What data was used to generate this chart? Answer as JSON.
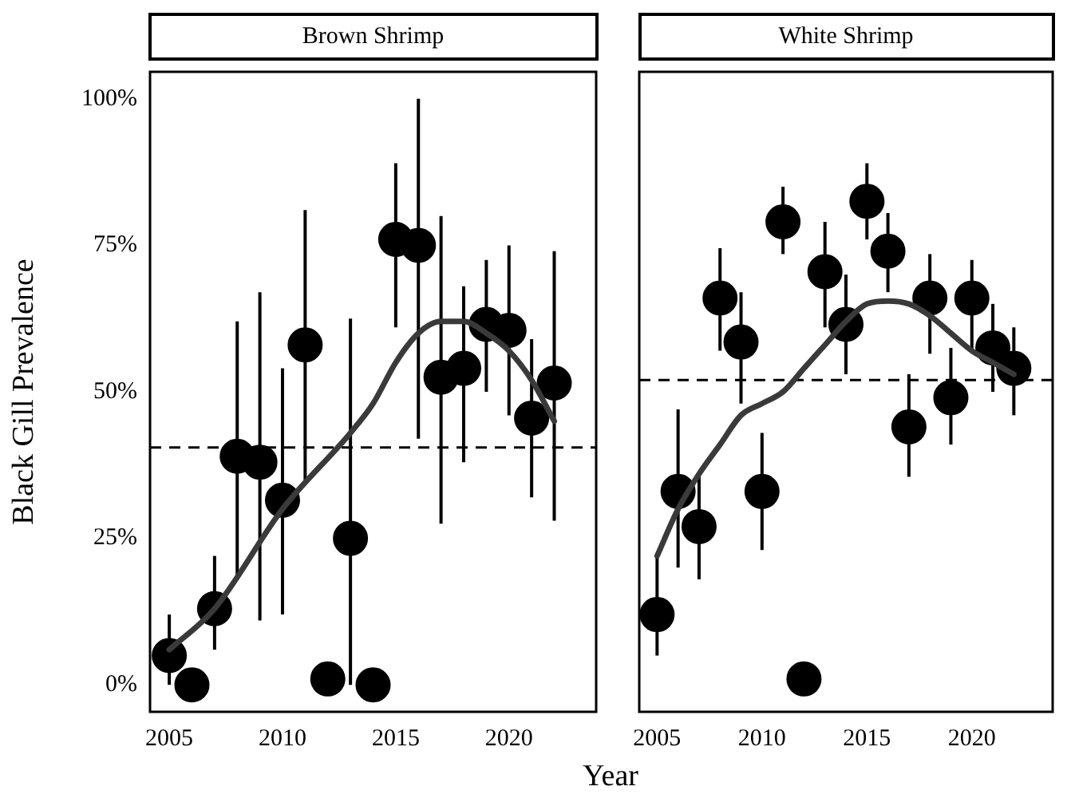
{
  "chart_data": [
    {
      "type": "scatter",
      "title": "Brown Shrimp",
      "xlabel": "Year",
      "ylabel": "Black Gill Prevalence",
      "xlim": [
        2004.15,
        2023.85
      ],
      "xticks": [
        2005,
        2010,
        2015,
        2020
      ],
      "ylim": [
        -4.6,
        104.6
      ],
      "yticks": [
        {
          "value": 0,
          "label": "0%"
        },
        {
          "value": 25,
          "label": "25%"
        },
        {
          "value": 50,
          "label": "50%"
        },
        {
          "value": 75,
          "label": "75%"
        },
        {
          "value": 100,
          "label": "100%"
        }
      ],
      "grid": false,
      "legend": false,
      "series": [
        {
          "marker": "circle",
          "color": "#000000",
          "x": [
            2005,
            2006,
            2007,
            2008,
            2009,
            2010,
            2011,
            2012,
            2013,
            2014,
            2015,
            2016,
            2017,
            2018,
            2019,
            2020,
            2021,
            2022
          ],
          "values": [
            5,
            0,
            13,
            39,
            38,
            31.5,
            58,
            1,
            25,
            0,
            76,
            75,
            52.5,
            54,
            61.5,
            60.5,
            45.5,
            51.5
          ],
          "errors": [
            [
              0,
              12
            ],
            null,
            [
              6,
              22
            ],
            [
              18,
              62
            ],
            [
              11,
              67
            ],
            [
              12,
              54
            ],
            [
              35,
              81
            ],
            null,
            [
              0,
              62.5
            ],
            null,
            [
              61,
              89
            ],
            [
              42,
              100
            ],
            [
              27.5,
              80
            ],
            [
              38,
              68
            ],
            [
              50,
              72.5
            ],
            [
              46,
              75
            ],
            [
              32,
              59
            ],
            [
              28,
              74
            ]
          ]
        },
        {
          "type": "line",
          "marker": "none",
          "color": "#3a3a3a",
          "x": [
            2005,
            2007,
            2010,
            2013,
            2014,
            2015,
            2016,
            2017,
            2018,
            2019,
            2020,
            2021,
            2022
          ],
          "values": [
            6,
            13,
            30,
            43,
            48,
            55,
            60,
            62,
            62,
            60,
            57,
            52,
            45
          ]
        }
      ],
      "ref_lines": [
        {
          "axis": "y",
          "value": 40.5,
          "color": "#000000",
          "line_style": "dashed"
        }
      ]
    },
    {
      "type": "scatter",
      "title": "White Shrimp",
      "xlim": [
        2004.15,
        2023.85
      ],
      "xticks": [
        2005,
        2010,
        2015,
        2020
      ],
      "ylim": [
        -4.6,
        104.6
      ],
      "tick_labels": "x",
      "grid": false,
      "legend": false,
      "series": [
        {
          "marker": "circle",
          "color": "#000000",
          "x": [
            2005,
            2006,
            2007,
            2008,
            2009,
            2010,
            2011,
            2012,
            2013,
            2014,
            2015,
            2016,
            2017,
            2018,
            2019,
            2020,
            2021,
            2022
          ],
          "values": [
            12,
            33,
            27,
            66,
            58.5,
            33,
            79,
            1,
            70.5,
            61.5,
            82.5,
            74,
            44,
            66,
            49,
            66,
            57.5,
            54
          ],
          "errors": [
            [
              5,
              22.5
            ],
            [
              20,
              47
            ],
            [
              18,
              36
            ],
            [
              57,
              74.5
            ],
            [
              48,
              67
            ],
            [
              23,
              43
            ],
            [
              73.5,
              85
            ],
            null,
            [
              61,
              79
            ],
            [
              53,
              70
            ],
            [
              76,
              89
            ],
            [
              67,
              80.5
            ],
            [
              35.5,
              53
            ],
            [
              56.5,
              73.5
            ],
            [
              41,
              57.5
            ],
            [
              57,
              72.5
            ],
            [
              50,
              65
            ],
            [
              46,
              61
            ]
          ]
        },
        {
          "type": "line",
          "marker": "none",
          "color": "#3a3a3a",
          "x": [
            2005,
            2006,
            2007,
            2008,
            2009,
            2010,
            2011,
            2012,
            2013,
            2014,
            2015,
            2016,
            2017,
            2018,
            2019,
            2020,
            2021,
            2022
          ],
          "values": [
            22,
            30,
            36,
            41,
            46,
            48,
            50,
            54,
            58,
            62,
            65,
            65.5,
            65,
            63,
            60,
            57,
            55,
            53
          ]
        }
      ],
      "ref_lines": [
        {
          "axis": "y",
          "value": 52,
          "color": "#000000",
          "line_style": "dashed"
        }
      ]
    }
  ]
}
